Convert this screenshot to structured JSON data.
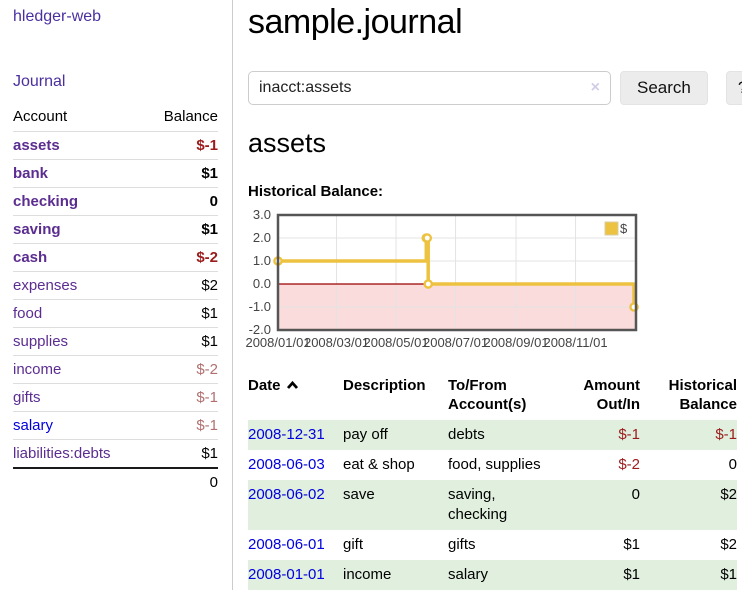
{
  "app": {
    "title": "hledger-web"
  },
  "sidebar": {
    "nav": {
      "journal": "Journal"
    },
    "accounts_table": {
      "headers": {
        "account": "Account",
        "balance": "Balance"
      },
      "rows": [
        {
          "name": "assets",
          "balance": "$-1",
          "level": 0,
          "emph": true
        },
        {
          "name": "bank",
          "balance": "$1",
          "level": 1,
          "emph": true
        },
        {
          "name": "checking",
          "balance": "0",
          "level": 2,
          "emph": true
        },
        {
          "name": "saving",
          "balance": "$1",
          "level": 2,
          "emph": true
        },
        {
          "name": "cash",
          "balance": "$-2",
          "level": 1,
          "emph": true
        },
        {
          "name": "expenses",
          "balance": "$2",
          "level": 0,
          "emph": false
        },
        {
          "name": "food",
          "balance": "$1",
          "level": 1,
          "emph": false
        },
        {
          "name": "supplies",
          "balance": "$1",
          "level": 1,
          "emph": false
        },
        {
          "name": "income",
          "balance": "$-2",
          "level": 0,
          "emph": false
        },
        {
          "name": "gifts",
          "balance": "$-1",
          "level": 1,
          "emph": false
        },
        {
          "name": "salary",
          "balance": "$-1",
          "level": 1,
          "emph": false
        },
        {
          "name": "liabilities:debts",
          "balance": "$1",
          "level": 0,
          "emph": false
        }
      ],
      "total": "0"
    }
  },
  "main": {
    "title": "sample.journal",
    "search": {
      "value": "inacct:assets",
      "clear_icon": "×",
      "button_label": "Search",
      "help_label": "?"
    },
    "account_heading": "assets",
    "chart_label": "Historical Balance:"
  },
  "chart_data": {
    "type": "line",
    "subtype": "step",
    "title": "Historical Balance",
    "legend": [
      {
        "label": "$",
        "color": "#edc240"
      }
    ],
    "legend_position": "top-right",
    "x": [
      "2008-01-01",
      "2008-06-01",
      "2008-06-02",
      "2008-06-03",
      "2008-12-31"
    ],
    "series": [
      {
        "name": "$",
        "values": [
          1,
          2,
          2,
          0,
          -1
        ]
      }
    ],
    "ylim": [
      -2,
      3
    ],
    "yticks": [
      3.0,
      2.0,
      1.0,
      0.0,
      -1.0,
      -2.0
    ],
    "xtick_labels": [
      "2008/01/01",
      "2008/03/01",
      "2008/05/01",
      "2008/07/01",
      "2008/09/01",
      "2008/11/01"
    ],
    "xtick_days": [
      0,
      60,
      121,
      182,
      244,
      305
    ],
    "xrange_days": [
      0,
      367
    ],
    "grid": true,
    "colors": {
      "line": "#edc240",
      "marker_fill": "#ffffff",
      "negative_region": "#fbdcdc",
      "zero_line": "#9a0000",
      "gridline": "#e3e3e3",
      "plot_border": "#555555"
    }
  },
  "transactions": {
    "headers": {
      "date": "Date",
      "description": "Description",
      "accounts_line1": "To/From",
      "accounts_line2": "Account(s)",
      "amount_line1": "Amount",
      "amount_line2": "Out/In",
      "balance_line1": "Historical",
      "balance_line2": "Balance"
    },
    "sort": {
      "column": "date",
      "direction": "asc"
    },
    "rows": [
      {
        "date": "2008-12-31",
        "description": "pay off",
        "accounts": "debts",
        "amount": "$-1",
        "balance": "$-1"
      },
      {
        "date": "2008-06-03",
        "description": "eat & shop",
        "accounts": "food, supplies",
        "amount": "$-2",
        "balance": "0"
      },
      {
        "date": "2008-06-02",
        "description": "save",
        "accounts": "saving, checking",
        "amount": "0",
        "balance": "$2"
      },
      {
        "date": "2008-06-01",
        "description": "gift",
        "accounts": "gifts",
        "amount": "$1",
        "balance": "$2"
      },
      {
        "date": "2008-01-01",
        "description": "income",
        "accounts": "salary",
        "amount": "$1",
        "balance": "$1"
      }
    ]
  }
}
